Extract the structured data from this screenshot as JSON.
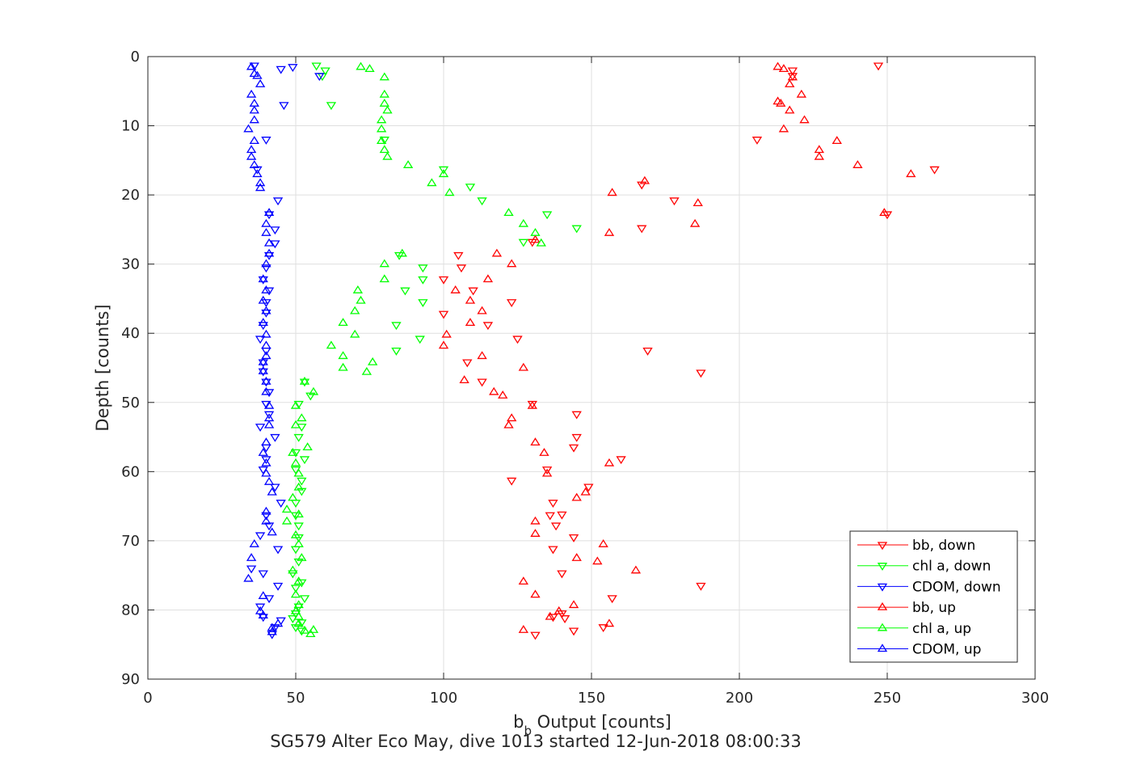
{
  "chart_data": {
    "type": "scatter",
    "title": "SG579 Alter Eco May, dive 1013 started 12-Jun-2018 08:00:33",
    "xlabel_main": "b",
    "xlabel_sub": "b",
    "xlabel_rest": " Output [counts]",
    "ylabel": "Depth [counts]",
    "xlim": [
      0,
      300
    ],
    "ylim": [
      0,
      90
    ],
    "y_reversed": true,
    "grid": true,
    "legend_location": "bottom-right",
    "x_ticks": [
      "0",
      "50",
      "100",
      "150",
      "200",
      "250",
      "300"
    ],
    "y_ticks": [
      "0",
      "10",
      "20",
      "30",
      "40",
      "50",
      "60",
      "70",
      "80",
      "90"
    ],
    "series": [
      {
        "name": "bb, down",
        "color": "#ff0000",
        "marker": "triangle-down",
        "points": [
          [
            247,
            1.3
          ],
          [
            218,
            2.0
          ],
          [
            218,
            2.8
          ],
          [
            206,
            12.0
          ],
          [
            266,
            16.3
          ],
          [
            250,
            22.8
          ],
          [
            167,
            18.5
          ],
          [
            178,
            20.8
          ],
          [
            167,
            24.8
          ],
          [
            130,
            26.8
          ],
          [
            105,
            28.7
          ],
          [
            106,
            30.5
          ],
          [
            100,
            32.2
          ],
          [
            110,
            33.8
          ],
          [
            123,
            35.5
          ],
          [
            100,
            37.2
          ],
          [
            115,
            38.8
          ],
          [
            125,
            40.8
          ],
          [
            169,
            42.5
          ],
          [
            108,
            44.2
          ],
          [
            187,
            45.7
          ],
          [
            113,
            47.0
          ],
          [
            130,
            50.2
          ],
          [
            145,
            51.7
          ],
          [
            145,
            55.0
          ],
          [
            144,
            56.5
          ],
          [
            160,
            58.2
          ],
          [
            135,
            59.7
          ],
          [
            123,
            61.3
          ],
          [
            149,
            62.2
          ],
          [
            137,
            64.5
          ],
          [
            136,
            66.3
          ],
          [
            140,
            66.2
          ],
          [
            138,
            67.8
          ],
          [
            144,
            69.5
          ],
          [
            137,
            71.2
          ],
          [
            140,
            74.7
          ],
          [
            187,
            76.5
          ],
          [
            157,
            78.3
          ],
          [
            140,
            80.5
          ],
          [
            141,
            81.2
          ],
          [
            154,
            82.5
          ],
          [
            144,
            83.0
          ],
          [
            131,
            83.6
          ],
          [
            137,
            81.0
          ]
        ]
      },
      {
        "name": "chl a, down",
        "color": "#00ff00",
        "marker": "triangle-down",
        "points": [
          [
            57,
            1.3
          ],
          [
            60,
            2.0
          ],
          [
            59,
            2.8
          ],
          [
            62,
            7.0
          ],
          [
            80,
            12.0
          ],
          [
            100,
            16.3
          ],
          [
            109,
            18.8
          ],
          [
            113,
            20.8
          ],
          [
            135,
            22.8
          ],
          [
            145,
            24.8
          ],
          [
            127,
            26.8
          ],
          [
            85,
            28.7
          ],
          [
            93,
            30.5
          ],
          [
            93,
            32.2
          ],
          [
            87,
            33.8
          ],
          [
            93,
            35.5
          ],
          [
            84,
            38.8
          ],
          [
            92,
            40.8
          ],
          [
            84,
            42.5
          ],
          [
            53,
            47.0
          ],
          [
            55,
            49.0
          ],
          [
            51,
            50.2
          ],
          [
            52,
            53.5
          ],
          [
            51,
            55.0
          ],
          [
            50,
            57.2
          ],
          [
            53,
            58.2
          ],
          [
            50,
            59.7
          ],
          [
            52,
            61.3
          ],
          [
            52,
            62.8
          ],
          [
            50,
            64.5
          ],
          [
            50,
            66.3
          ],
          [
            51,
            67.8
          ],
          [
            51,
            69.5
          ],
          [
            50,
            71.2
          ],
          [
            51,
            73.0
          ],
          [
            49,
            74.7
          ],
          [
            52,
            76.0
          ],
          [
            50,
            76.8
          ],
          [
            53,
            78.3
          ],
          [
            51,
            79.5
          ],
          [
            50,
            80.5
          ],
          [
            49,
            81.2
          ],
          [
            52,
            81.8
          ],
          [
            50,
            82.5
          ],
          [
            52,
            83.0
          ]
        ]
      },
      {
        "name": "CDOM, down",
        "color": "#0000ff",
        "marker": "triangle-down",
        "points": [
          [
            36,
            1.3
          ],
          [
            45,
            1.8
          ],
          [
            49,
            1.5
          ],
          [
            58,
            2.8
          ],
          [
            46,
            7.0
          ],
          [
            40,
            12.0
          ],
          [
            37,
            16.3
          ],
          [
            44,
            20.8
          ],
          [
            41,
            22.8
          ],
          [
            43,
            25.0
          ],
          [
            43,
            27.0
          ],
          [
            41,
            28.7
          ],
          [
            40,
            30.5
          ],
          [
            39,
            32.2
          ],
          [
            41,
            33.8
          ],
          [
            40,
            35.5
          ],
          [
            40,
            37.0
          ],
          [
            39,
            38.8
          ],
          [
            38,
            40.8
          ],
          [
            40,
            42.5
          ],
          [
            39,
            44.2
          ],
          [
            39,
            45.5
          ],
          [
            40,
            47.0
          ],
          [
            41,
            48.5
          ],
          [
            40,
            50.2
          ],
          [
            41,
            51.7
          ],
          [
            38,
            53.5
          ],
          [
            43,
            55.0
          ],
          [
            40,
            56.5
          ],
          [
            40,
            58.2
          ],
          [
            39,
            59.7
          ],
          [
            43,
            62.2
          ],
          [
            45,
            64.5
          ],
          [
            40,
            66.3
          ],
          [
            41,
            67.8
          ],
          [
            38,
            69.2
          ],
          [
            44,
            71.2
          ],
          [
            35,
            74.0
          ],
          [
            39,
            74.7
          ],
          [
            44,
            76.5
          ],
          [
            41,
            78.3
          ],
          [
            38,
            79.5
          ],
          [
            39,
            81.0
          ],
          [
            45,
            81.5
          ],
          [
            43,
            82.5
          ],
          [
            42,
            83.5
          ]
        ]
      },
      {
        "name": "bb, up",
        "color": "#ff0000",
        "marker": "triangle-up",
        "points": [
          [
            213,
            1.5
          ],
          [
            215,
            1.8
          ],
          [
            218,
            3.0
          ],
          [
            221,
            5.5
          ],
          [
            214,
            6.8
          ],
          [
            217,
            4.0
          ],
          [
            213,
            6.5
          ],
          [
            217,
            7.8
          ],
          [
            222,
            9.2
          ],
          [
            215,
            10.5
          ],
          [
            233,
            12.2
          ],
          [
            227,
            13.5
          ],
          [
            227,
            14.5
          ],
          [
            240,
            15.7
          ],
          [
            258,
            17.0
          ],
          [
            249,
            22.6
          ],
          [
            168,
            18.0
          ],
          [
            157,
            19.7
          ],
          [
            186,
            21.2
          ],
          [
            185,
            24.2
          ],
          [
            131,
            26.5
          ],
          [
            156,
            25.5
          ],
          [
            118,
            28.5
          ],
          [
            123,
            30.0
          ],
          [
            115,
            32.2
          ],
          [
            104,
            33.8
          ],
          [
            109,
            35.3
          ],
          [
            113,
            36.8
          ],
          [
            109,
            38.5
          ],
          [
            101,
            40.2
          ],
          [
            100,
            41.8
          ],
          [
            113,
            43.3
          ],
          [
            127,
            45.0
          ],
          [
            107,
            46.8
          ],
          [
            117,
            48.5
          ],
          [
            120,
            49.0
          ],
          [
            130,
            50.5
          ],
          [
            123,
            52.3
          ],
          [
            122,
            53.3
          ],
          [
            131,
            55.8
          ],
          [
            134,
            57.3
          ],
          [
            156,
            58.8
          ],
          [
            135,
            60.3
          ],
          [
            148,
            63.0
          ],
          [
            145,
            63.8
          ],
          [
            131,
            67.2
          ],
          [
            131,
            69.0
          ],
          [
            154,
            70.5
          ],
          [
            145,
            72.5
          ],
          [
            152,
            73.0
          ],
          [
            165,
            74.3
          ],
          [
            127,
            75.9
          ],
          [
            131,
            77.8
          ],
          [
            144,
            79.3
          ],
          [
            139,
            80.2
          ],
          [
            136,
            81.0
          ],
          [
            156,
            82.0
          ],
          [
            127,
            82.9
          ]
        ]
      },
      {
        "name": "chl a, up",
        "color": "#00ff00",
        "marker": "triangle-up",
        "points": [
          [
            72,
            1.5
          ],
          [
            75,
            1.8
          ],
          [
            80,
            3.0
          ],
          [
            80,
            5.5
          ],
          [
            80,
            6.8
          ],
          [
            81,
            7.8
          ],
          [
            79,
            9.2
          ],
          [
            79,
            10.5
          ],
          [
            79,
            12.2
          ],
          [
            80,
            13.5
          ],
          [
            81,
            14.5
          ],
          [
            88,
            15.7
          ],
          [
            100,
            17.0
          ],
          [
            96,
            18.3
          ],
          [
            102,
            19.7
          ],
          [
            122,
            22.6
          ],
          [
            127,
            24.2
          ],
          [
            131,
            25.5
          ],
          [
            133,
            27.0
          ],
          [
            86,
            28.5
          ],
          [
            80,
            30.0
          ],
          [
            80,
            32.2
          ],
          [
            71,
            33.8
          ],
          [
            72,
            35.3
          ],
          [
            70,
            36.8
          ],
          [
            66,
            38.5
          ],
          [
            70,
            40.2
          ],
          [
            62,
            41.8
          ],
          [
            66,
            43.3
          ],
          [
            66,
            45.0
          ],
          [
            76,
            44.2
          ],
          [
            74,
            45.6
          ],
          [
            53,
            47.0
          ],
          [
            56,
            48.5
          ],
          [
            50,
            50.5
          ],
          [
            52,
            52.3
          ],
          [
            50,
            53.3
          ],
          [
            54,
            56.5
          ],
          [
            49,
            57.3
          ],
          [
            50,
            58.8
          ],
          [
            51,
            60.3
          ],
          [
            51,
            62.3
          ],
          [
            49,
            63.8
          ],
          [
            47,
            65.5
          ],
          [
            51,
            66.2
          ],
          [
            47,
            67.2
          ],
          [
            50,
            69.2
          ],
          [
            51,
            70.5
          ],
          [
            52,
            72.5
          ],
          [
            49,
            74.3
          ],
          [
            51,
            75.9
          ],
          [
            50,
            77.8
          ],
          [
            51,
            79.3
          ],
          [
            50,
            80.2
          ],
          [
            51,
            81.0
          ],
          [
            51,
            82.0
          ],
          [
            56,
            82.9
          ],
          [
            55,
            83.5
          ],
          [
            53,
            83.0
          ]
        ]
      },
      {
        "name": "CDOM, up",
        "color": "#0000ff",
        "marker": "triangle-up",
        "points": [
          [
            35,
            1.5
          ],
          [
            36,
            2.5
          ],
          [
            37,
            2.8
          ],
          [
            38,
            4.0
          ],
          [
            35,
            5.5
          ],
          [
            36,
            6.8
          ],
          [
            36,
            7.8
          ],
          [
            36,
            9.2
          ],
          [
            34,
            10.5
          ],
          [
            36,
            12.2
          ],
          [
            35,
            13.5
          ],
          [
            35,
            14.5
          ],
          [
            36,
            15.7
          ],
          [
            37,
            17.0
          ],
          [
            38,
            18.3
          ],
          [
            38,
            19.0
          ],
          [
            41,
            22.6
          ],
          [
            40,
            24.2
          ],
          [
            40,
            25.5
          ],
          [
            41,
            27.0
          ],
          [
            41,
            28.5
          ],
          [
            40,
            30.0
          ],
          [
            39,
            32.2
          ],
          [
            40,
            33.8
          ],
          [
            39,
            35.3
          ],
          [
            40,
            36.8
          ],
          [
            39,
            38.5
          ],
          [
            40,
            40.2
          ],
          [
            40,
            41.8
          ],
          [
            40,
            43.3
          ],
          [
            39,
            44.2
          ],
          [
            39,
            45.5
          ],
          [
            40,
            47.0
          ],
          [
            40,
            48.5
          ],
          [
            41,
            50.5
          ],
          [
            41,
            52.3
          ],
          [
            41,
            53.3
          ],
          [
            40,
            55.8
          ],
          [
            39,
            57.3
          ],
          [
            40,
            58.8
          ],
          [
            40,
            60.3
          ],
          [
            41,
            61.5
          ],
          [
            42,
            63.0
          ],
          [
            40,
            65.8
          ],
          [
            40,
            67.2
          ],
          [
            42,
            68.8
          ],
          [
            36,
            70.5
          ],
          [
            35,
            72.5
          ],
          [
            34,
            75.5
          ],
          [
            39,
            78.0
          ],
          [
            38,
            80.2
          ],
          [
            39,
            80.8
          ],
          [
            44,
            82.0
          ],
          [
            42,
            82.6
          ],
          [
            42,
            83.2
          ]
        ]
      }
    ]
  }
}
